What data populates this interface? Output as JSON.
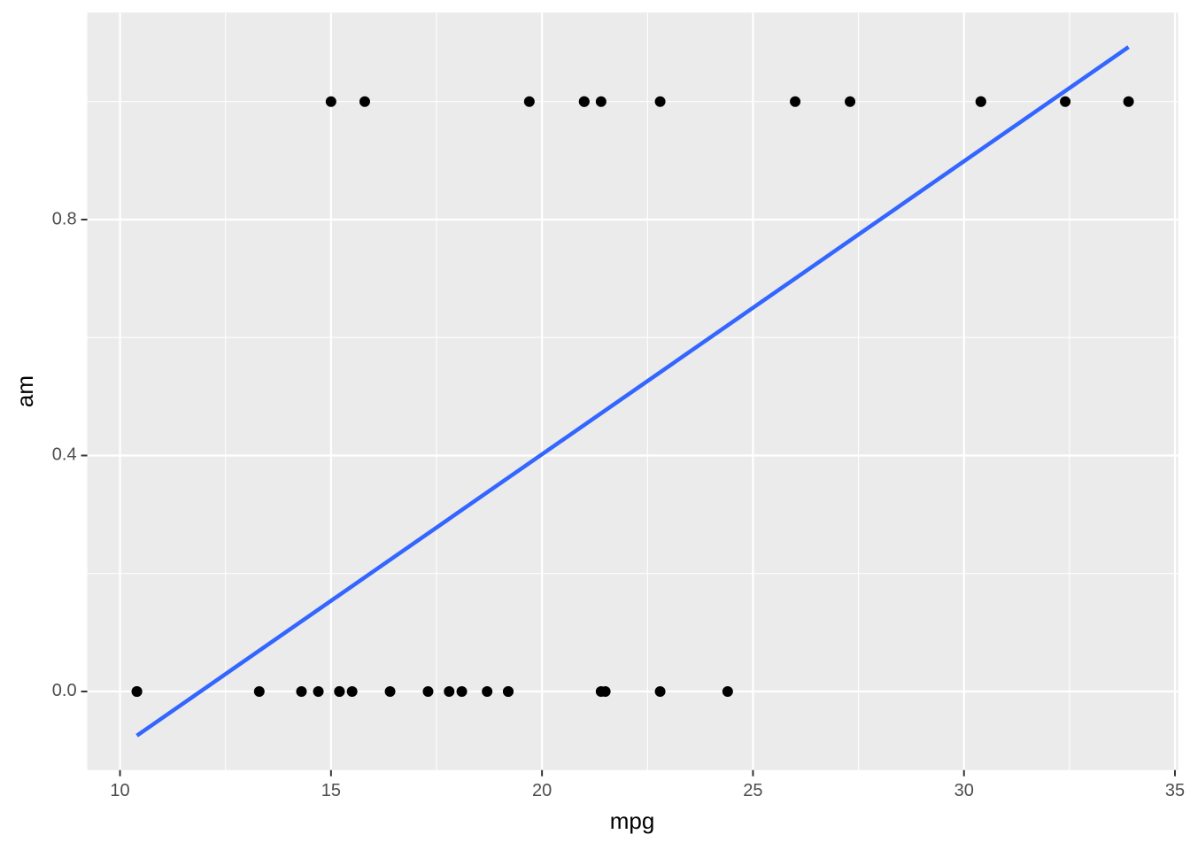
{
  "chart_data": {
    "type": "scatter",
    "x_label": "mpg",
    "y_label": "am",
    "x": [
      21.0,
      21.0,
      22.8,
      21.4,
      18.7,
      18.1,
      14.3,
      24.4,
      22.8,
      19.2,
      17.8,
      16.4,
      17.3,
      15.2,
      10.4,
      10.4,
      14.7,
      32.4,
      30.4,
      33.9,
      21.5,
      15.5,
      15.2,
      13.3,
      19.2,
      27.3,
      26.0,
      30.4,
      15.8,
      19.7,
      15.0,
      21.4
    ],
    "y": [
      1,
      1,
      1,
      0,
      0,
      0,
      0,
      0,
      0,
      0,
      0,
      0,
      0,
      0,
      0,
      0,
      0,
      1,
      1,
      1,
      0,
      0,
      0,
      0,
      0,
      1,
      1,
      1,
      1,
      1,
      1,
      1
    ],
    "color": "#000000",
    "trend": {
      "x": [
        10.4,
        33.9
      ],
      "y": [
        -0.0748,
        1.0925
      ],
      "color": "#3366FF"
    },
    "xlim": [
      9.225,
      35.075
    ],
    "xticks": [
      10,
      15,
      20,
      25,
      30,
      35
    ],
    "ylim": [
      -0.1332,
      1.1509
    ],
    "yticks": [
      {
        "value": 0,
        "label": "0.0"
      },
      0.4,
      0.8
    ],
    "grid": true
  }
}
